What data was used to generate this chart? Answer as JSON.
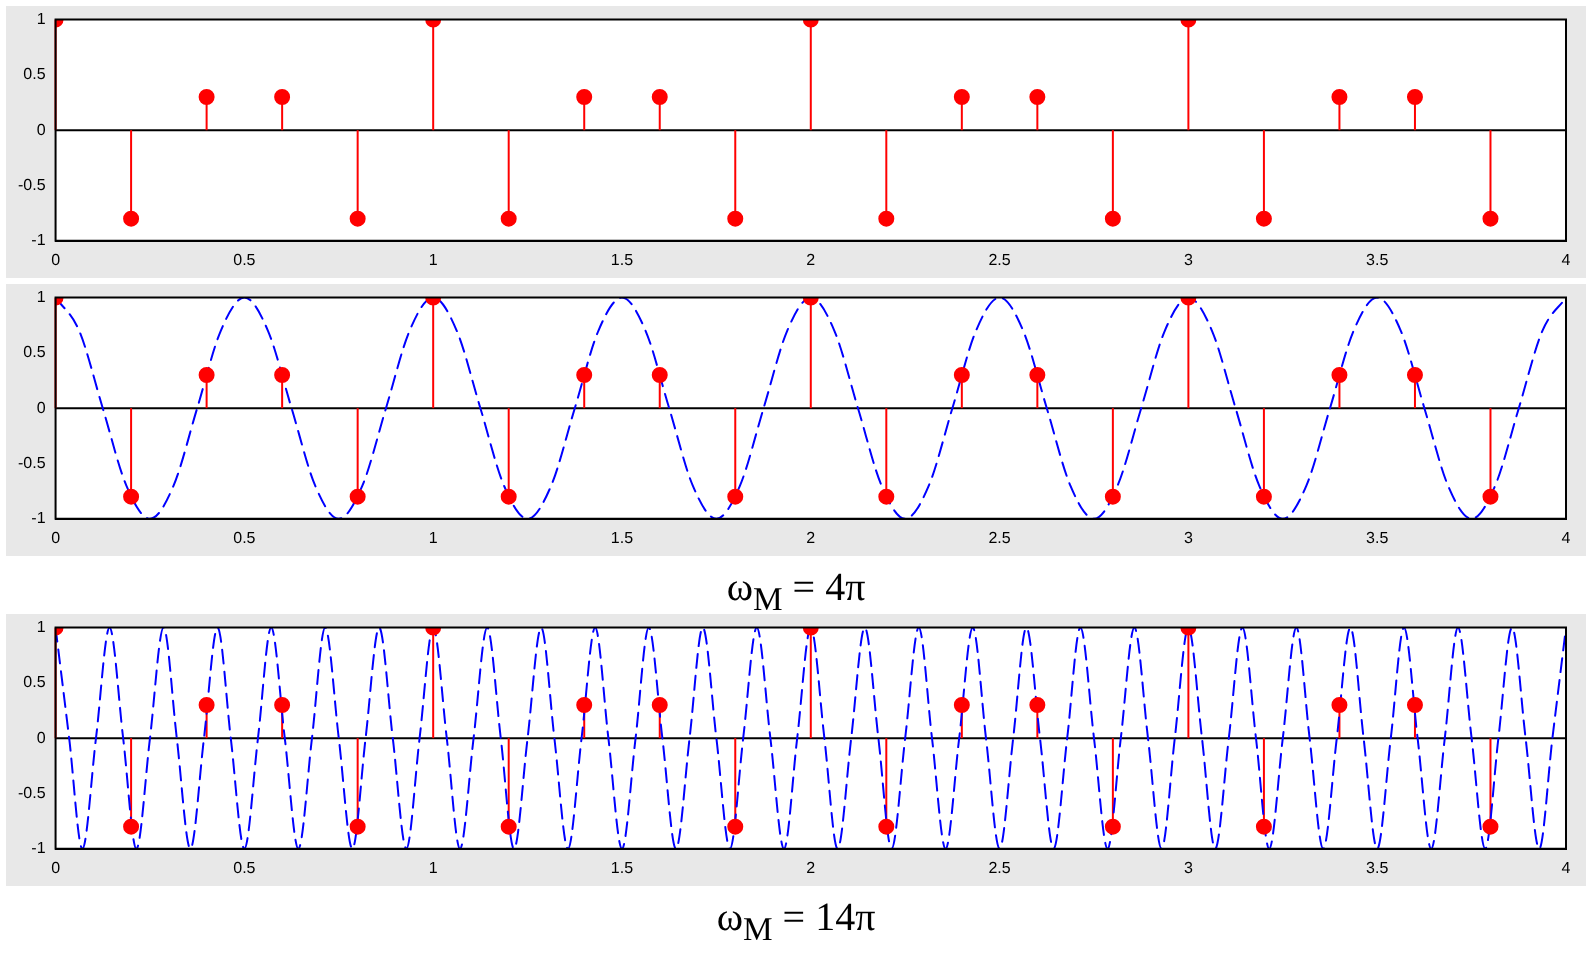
{
  "chart_data": [
    {
      "type": "lollipop",
      "x": [
        0,
        0.2,
        0.4,
        0.6,
        0.8,
        1,
        1.2,
        1.4,
        1.6,
        1.8,
        2,
        2.2,
        2.4,
        2.6,
        2.8,
        3,
        3.2,
        3.4,
        3.6,
        3.8
      ],
      "series": [
        {
          "color": "#ff0000",
          "values": [
            1,
            -0.8,
            0.3,
            0.3,
            -0.8,
            1,
            -0.8,
            0.3,
            0.3,
            -0.8,
            1,
            -0.8,
            0.3,
            0.3,
            -0.8,
            1,
            -0.8,
            0.3,
            0.3,
            -0.8
          ]
        }
      ],
      "xlim": [
        0,
        4
      ],
      "ylim": [
        -1,
        1
      ],
      "xticks": [
        0,
        0.5,
        1,
        1.5,
        2,
        2.5,
        3,
        3.5,
        4
      ],
      "yticks": [
        -1,
        -0.5,
        0,
        0.5,
        1
      ],
      "marker": "circle"
    },
    {
      "type": "lollipop",
      "x": [
        0,
        0.2,
        0.4,
        0.6,
        0.8,
        1,
        1.2,
        1.4,
        1.6,
        1.8,
        2,
        2.2,
        2.4,
        2.6,
        2.8,
        3,
        3.2,
        3.4,
        3.6,
        3.8
      ],
      "series": [
        {
          "type": "line",
          "color": "#0000ff",
          "line_style": "dashed",
          "marker": "none",
          "x": [
            0,
            0.0625,
            0.125,
            0.1875,
            0.25,
            0.3125,
            0.375,
            0.4375,
            0.5,
            0.5625,
            0.625,
            0.6875,
            0.75,
            0.8125,
            0.875,
            0.9375,
            1,
            1.0625,
            1.125,
            1.1875,
            1.25,
            1.3125,
            1.375,
            1.4375,
            1.5,
            1.5625,
            1.625,
            1.6875,
            1.75,
            1.8125,
            1.875,
            1.9375,
            2,
            2.0625,
            2.125,
            2.1875,
            2.25,
            2.3125,
            2.375,
            2.4375,
            2.5,
            2.5625,
            2.625,
            2.6875,
            2.75,
            2.8125,
            2.875,
            2.9375,
            3,
            3.0625,
            3.125,
            3.1875,
            3.25,
            3.3125,
            3.375,
            3.4375,
            3.5,
            3.5625,
            3.625,
            3.6875,
            3.75,
            3.8125,
            3.875,
            3.9375,
            4
          ],
          "values": [
            1,
            0.7,
            0,
            -0.7,
            -1,
            -0.7,
            0,
            0.7,
            1,
            0.7,
            0,
            -0.7,
            -1,
            -0.7,
            0,
            0.7,
            1,
            0.7,
            0,
            -0.7,
            -1,
            -0.7,
            0,
            0.7,
            1,
            0.7,
            0,
            -0.7,
            -1,
            -0.7,
            0,
            0.7,
            1,
            0.7,
            0,
            -0.7,
            -1,
            -0.7,
            0,
            0.7,
            1,
            0.7,
            0,
            -0.7,
            -1,
            -0.7,
            0,
            0.7,
            1,
            0.7,
            0,
            -0.7,
            -1,
            -0.7,
            0,
            0.7,
            1,
            0.7,
            0,
            -0.7,
            -1,
            -0.7,
            0,
            0.7,
            1
          ]
        },
        {
          "color": "#ff0000",
          "values": [
            1,
            -0.8,
            0.3,
            0.3,
            -0.8,
            1,
            -0.8,
            0.3,
            0.3,
            -0.8,
            1,
            -0.8,
            0.3,
            0.3,
            -0.8,
            1,
            -0.8,
            0.3,
            0.3,
            -0.8
          ]
        }
      ],
      "xlim": [
        0,
        4
      ],
      "ylim": [
        -1,
        1
      ],
      "xticks": [
        0,
        0.5,
        1,
        1.5,
        2,
        2.5,
        3,
        3.5,
        4
      ],
      "yticks": [
        -1,
        -0.5,
        0,
        0.5,
        1
      ],
      "marker": "circle",
      "annotations": [
        "ω$_{M}$ = 4π"
      ]
    },
    {
      "type": "lollipop",
      "x": [
        0,
        0.2,
        0.4,
        0.6,
        0.8,
        1,
        1.2,
        1.4,
        1.6,
        1.8,
        2,
        2.2,
        2.4,
        2.6,
        2.8,
        3,
        3.2,
        3.4,
        3.6,
        3.8
      ],
      "series": [
        {
          "type": "line",
          "color": "#0000ff",
          "line_style": "dashed",
          "marker": "none",
          "x": [
            0,
            0.036,
            0.071,
            0.107,
            0.143,
            0.179,
            0.214,
            0.25,
            0.286,
            0.321,
            0.357,
            0.393,
            0.429,
            0.464,
            0.5,
            0.536,
            0.571,
            0.607,
            0.643,
            0.679,
            0.714,
            0.75,
            0.786,
            0.821,
            0.857,
            0.893,
            0.929,
            0.964,
            1,
            1.036,
            1.071,
            1.107,
            1.143,
            1.179,
            1.214,
            1.25,
            1.286,
            1.321,
            1.357,
            1.393,
            1.429,
            1.464,
            1.5,
            1.536,
            1.571,
            1.607,
            1.643,
            1.679,
            1.714,
            1.75,
            1.786,
            1.821,
            1.857,
            1.893,
            1.929,
            1.964,
            2,
            2.036,
            2.071,
            2.107,
            2.143,
            2.179,
            2.214,
            2.25,
            2.286,
            2.321,
            2.357,
            2.393,
            2.429,
            2.464,
            2.5,
            2.536,
            2.571,
            2.607,
            2.643,
            2.679,
            2.714,
            2.75,
            2.786,
            2.821,
            2.857,
            2.893,
            2.929,
            2.964,
            3,
            3.036,
            3.071,
            3.107,
            3.143,
            3.179,
            3.214,
            3.25,
            3.286,
            3.321,
            3.357,
            3.393,
            3.429,
            3.464,
            3.5,
            3.536,
            3.571,
            3.607,
            3.643,
            3.679,
            3.714,
            3.75,
            3.786,
            3.821,
            3.857,
            3.893,
            3.929,
            3.964,
            4
          ],
          "values": [
            1,
            0,
            -1,
            0,
            1,
            0,
            -1,
            0,
            1,
            0,
            -1,
            0,
            1,
            0,
            -1,
            0,
            1,
            0,
            -1,
            0,
            1,
            0,
            -1,
            0,
            1,
            0,
            -1,
            0,
            1,
            0,
            -1,
            0,
            1,
            0,
            -1,
            0,
            1,
            0,
            -1,
            0,
            1,
            0,
            -1,
            0,
            1,
            0,
            -1,
            0,
            1,
            0,
            -1,
            0,
            1,
            0,
            -1,
            0,
            1,
            0,
            -1,
            0,
            1,
            0,
            -1,
            0,
            1,
            0,
            -1,
            0,
            1,
            0,
            -1,
            0,
            1,
            0,
            -1,
            0,
            1,
            0,
            -1,
            0,
            1,
            0,
            -1,
            0,
            1,
            0,
            -1,
            0,
            1,
            0,
            -1,
            0,
            1,
            0,
            -1,
            0,
            1,
            0,
            -1,
            0,
            1,
            0,
            -1,
            0,
            1,
            0,
            -1,
            0,
            1,
            0,
            -1,
            0,
            1
          ]
        },
        {
          "color": "#ff0000",
          "values": [
            1,
            -0.8,
            0.3,
            0.3,
            -0.8,
            1,
            -0.8,
            0.3,
            0.3,
            -0.8,
            1,
            -0.8,
            0.3,
            0.3,
            -0.8,
            1,
            -0.8,
            0.3,
            0.3,
            -0.8
          ]
        }
      ],
      "xlim": [
        0,
        4
      ],
      "ylim": [
        -1,
        1
      ],
      "xticks": [
        0,
        0.5,
        1,
        1.5,
        2,
        2.5,
        3,
        3.5,
        4
      ],
      "yticks": [
        -1,
        -0.5,
        0,
        0.5,
        1
      ],
      "marker": "circle",
      "annotations": [
        "ω$_{M}$ = 14π"
      ]
    }
  ]
}
